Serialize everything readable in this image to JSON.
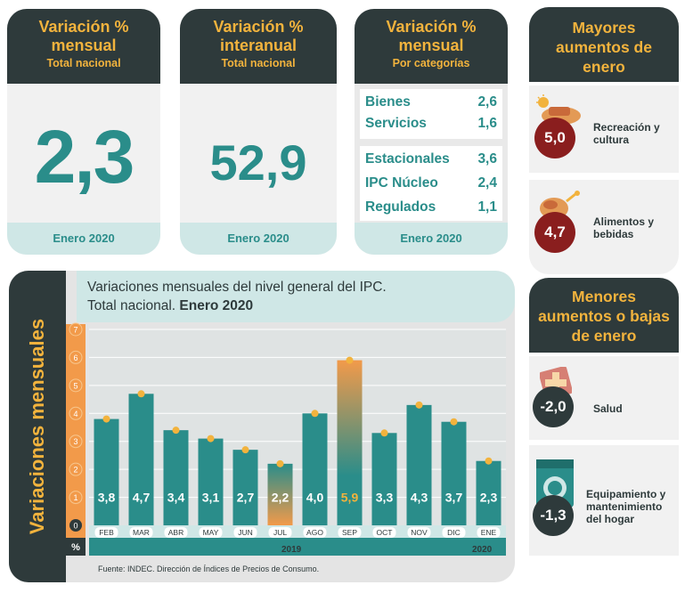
{
  "cards": {
    "mensual": {
      "title": "Variación % mensual",
      "subtitle": "Total nacional",
      "value": "2,3",
      "footer": "Enero 2020"
    },
    "interanual": {
      "title": "Variación % interanual",
      "subtitle": "Total nacional",
      "value": "52,9",
      "footer": "Enero 2020"
    },
    "categorias": {
      "title": "Variación % mensual",
      "subtitle": "Por categorías",
      "block1": [
        {
          "label": "Bienes",
          "value": "2,6"
        },
        {
          "label": "Servicios",
          "value": "1,6"
        }
      ],
      "block2": [
        {
          "label": "Estacionales",
          "value": "3,6"
        },
        {
          "label": "IPC Núcleo",
          "value": "2,4"
        },
        {
          "label": "Regulados",
          "value": "1,1"
        }
      ],
      "footer": "Enero 2020"
    }
  },
  "mayores": {
    "title": "Mayores aumentos de enero",
    "items": [
      {
        "value": "5,0",
        "label": "Recreación y cultura",
        "icon": "recreation-icon"
      },
      {
        "value": "4,7",
        "label": "Alimentos y bebidas",
        "icon": "food-icon"
      }
    ]
  },
  "menores": {
    "title": "Menores aumentos o bajas de enero",
    "items": [
      {
        "value": "-2,0",
        "label": "Salud",
        "icon": "health-cross-icon"
      },
      {
        "value": "-1,3",
        "label": "Equipamiento y mantenimiento del hogar",
        "icon": "washing-machine-icon"
      }
    ]
  },
  "chart": {
    "side_label": "Variaciones mensuales",
    "title_line1": "Variaciones mensuales del nivel general del IPC.",
    "title_line2": "Total nacional. ",
    "title_bold": "Enero 2020",
    "year_2019": "2019",
    "year_2020": "2020",
    "unit": "%",
    "source": "Fuente: INDEC. Dirección de Índices de Precios de Consumo."
  },
  "colors": {
    "teal": "#2a8d8a",
    "dark": "#2e3a3b",
    "orange": "#f2b33d",
    "light_teal": "#cfe7e6"
  },
  "chart_data": {
    "type": "bar",
    "categories": [
      "FEB",
      "MAR",
      "ABR",
      "MAY",
      "JUN",
      "JUL",
      "AGO",
      "SEP",
      "OCT",
      "NOV",
      "DIC",
      "ENE"
    ],
    "values": [
      3.8,
      4.7,
      3.4,
      3.1,
      2.7,
      2.2,
      4.0,
      5.9,
      3.3,
      4.3,
      3.7,
      2.3
    ],
    "value_labels": [
      "3,8",
      "4,7",
      "3,4",
      "3,1",
      "2,7",
      "2,2",
      "4,0",
      "5,9",
      "3,3",
      "4,3",
      "3,7",
      "2,3"
    ],
    "y_ticks": [
      "0",
      "1",
      "2",
      "3",
      "4",
      "5",
      "6",
      "7"
    ],
    "ylim": [
      0,
      7
    ],
    "grid": true
  }
}
